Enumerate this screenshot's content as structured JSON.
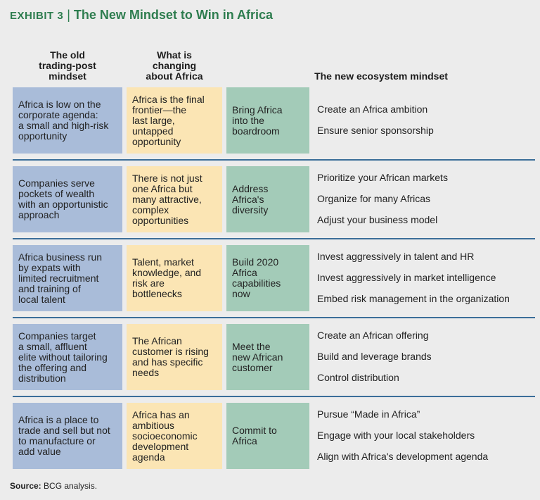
{
  "title": {
    "exhibit": "EXHIBIT 3",
    "separator": "|",
    "text": "The New Mindset to Win in Africa"
  },
  "headers": {
    "old": [
      "The old",
      "trading-post",
      "mindset"
    ],
    "changing": [
      "What is",
      "changing",
      "about Africa"
    ],
    "new": "The new ecosystem mindset"
  },
  "rows": [
    {
      "old": [
        "Africa is low on the",
        "corporate agenda:",
        "a small and high-risk",
        "opportunity"
      ],
      "changing": [
        "Africa is the final",
        "frontier—the",
        "last large,",
        "untapped",
        "opportunity"
      ],
      "ecosystem": [
        "Bring Africa",
        "into the",
        "boardroom"
      ],
      "actions": [
        "Create an Africa ambition",
        "Ensure senior sponsorship"
      ]
    },
    {
      "old": [
        "Companies serve",
        "pockets of wealth",
        "with an opportunistic",
        "approach"
      ],
      "changing": [
        "There is not just",
        "one Africa but",
        "many attractive,",
        "complex",
        "opportunities"
      ],
      "ecosystem": [
        "Address",
        "Africa's",
        "diversity"
      ],
      "actions": [
        "Prioritize your African markets",
        "Organize for many Africas",
        "Adjust your business model"
      ]
    },
    {
      "old": [
        "Africa business run",
        "by expats with",
        "limited recruitment",
        "and training of",
        "local talent"
      ],
      "changing": [
        "Talent, market",
        "knowledge, and",
        "risk are",
        "bottlenecks"
      ],
      "ecosystem": [
        "Build 2020",
        "Africa",
        "capabilities",
        "now"
      ],
      "actions": [
        "Invest aggressively in talent and HR",
        "Invest aggressively in market intelligence",
        "Embed risk management in the organization"
      ]
    },
    {
      "old": [
        "Companies target",
        "a small, affluent",
        "elite without tailoring",
        "the offering and",
        "distribution"
      ],
      "changing": [
        "The African",
        "customer is rising",
        "and has specific",
        "needs"
      ],
      "ecosystem": [
        "Meet the",
        "new African",
        "customer"
      ],
      "actions": [
        "Create an African offering",
        "Build and leverage brands",
        "Control distribution"
      ]
    },
    {
      "old": [
        "Africa is a place to",
        "trade and sell but not",
        "to manufacture or",
        "add value"
      ],
      "changing": [
        "Africa has an",
        "ambitious",
        "socioeconomic",
        "development",
        "agenda"
      ],
      "ecosystem": [
        "Commit to",
        "Africa"
      ],
      "actions": [
        "Pursue “Made in Africa”",
        "Engage with your local stakeholders",
        "Align with Africa's development agenda"
      ]
    }
  ],
  "source": {
    "label": "Source:",
    "text": "BCG analysis."
  }
}
